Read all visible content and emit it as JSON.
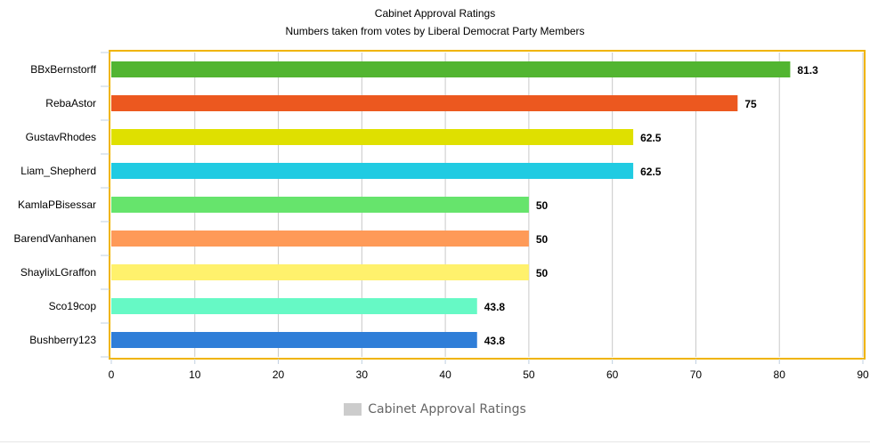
{
  "chart_data": {
    "type": "bar",
    "orientation": "horizontal",
    "title": "Cabinet Approval Ratings",
    "subtitle": "Numbers taken from votes by Liberal Democrat Party Members",
    "categories": [
      "BBxBernstorff",
      "RebaAstor",
      "GustavRhodes",
      "Liam_Shepherd",
      "KamlaPBisessar",
      "BarendVanhanen",
      "ShaylixLGraffon",
      "Sco19cop",
      "Bushberry123"
    ],
    "series": [
      {
        "name": "Cabinet Approval Ratings",
        "values": [
          81.3,
          75,
          62.5,
          62.5,
          50,
          50,
          50,
          43.8,
          43.8
        ],
        "colors": [
          "#52b531",
          "#ec581f",
          "#dfe000",
          "#20cbe2",
          "#66e46c",
          "#fe9a58",
          "#fff16c",
          "#66f9c5",
          "#2f7ed8"
        ]
      }
    ],
    "xlim": [
      0,
      90
    ],
    "xticks": [
      0,
      10,
      20,
      30,
      40,
      50,
      60,
      70,
      80,
      90
    ],
    "grid": true,
    "legend": "bottom-center",
    "plot_border_color": "#f0b400"
  }
}
